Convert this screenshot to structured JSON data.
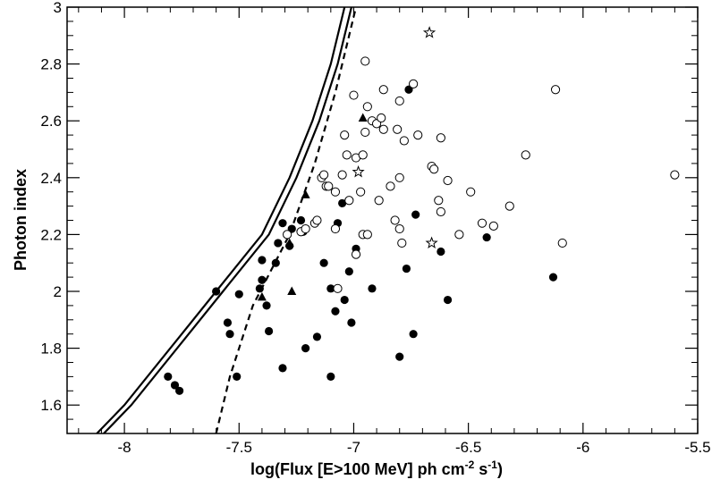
{
  "chart_data": {
    "type": "scatter",
    "title": "",
    "xlabel": "log(Flux [E>100 MeV] ph cm",
    "xlabel_sup1": "-2",
    "xlabel_mid": " s",
    "xlabel_sup2": "-1",
    "xlabel_end": ")",
    "ylabel": "Photon index",
    "xlim": [
      -8.25,
      -5.5
    ],
    "ylim": [
      1.5,
      3.0
    ],
    "x_ticks": [
      {
        "value": -8,
        "label": "-8"
      },
      {
        "value": -7.5,
        "label": "-7.5"
      },
      {
        "value": -7,
        "label": "-7"
      },
      {
        "value": -6.5,
        "label": "-6.5"
      },
      {
        "value": -6,
        "label": "-6"
      },
      {
        "value": -5.5,
        "label": "-5.5"
      }
    ],
    "y_ticks": [
      {
        "value": 1.6,
        "label": "1.6"
      },
      {
        "value": 1.8,
        "label": "1.8"
      },
      {
        "value": 2,
        "label": "2"
      },
      {
        "value": 2.2,
        "label": "2.2"
      },
      {
        "value": 2.4,
        "label": "2.4"
      },
      {
        "value": 2.6,
        "label": "2.6"
      },
      {
        "value": 2.8,
        "label": "2.8"
      },
      {
        "value": 3,
        "label": "3"
      }
    ],
    "grid": false,
    "series": [
      {
        "marker": "filled-circle",
        "points": [
          [
            -7.6,
            2.0
          ],
          [
            -7.55,
            1.89
          ],
          [
            -7.54,
            1.85
          ],
          [
            -7.5,
            1.99
          ],
          [
            -7.51,
            1.7
          ],
          [
            -7.81,
            1.7
          ],
          [
            -7.78,
            1.67
          ],
          [
            -7.76,
            1.65
          ],
          [
            -7.4,
            2.11
          ],
          [
            -7.4,
            2.04
          ],
          [
            -7.41,
            2.01
          ],
          [
            -7.38,
            1.95
          ],
          [
            -7.37,
            1.86
          ],
          [
            -7.34,
            2.1
          ],
          [
            -7.33,
            2.17
          ],
          [
            -7.31,
            2.24
          ],
          [
            -7.31,
            1.73
          ],
          [
            -7.28,
            2.16
          ],
          [
            -7.27,
            2.22
          ],
          [
            -7.23,
            2.25
          ],
          [
            -7.22,
            2.21
          ],
          [
            -7.21,
            1.8
          ],
          [
            -7.16,
            1.84
          ],
          [
            -7.13,
            2.1
          ],
          [
            -7.1,
            2.01
          ],
          [
            -7.1,
            1.7
          ],
          [
            -7.08,
            1.93
          ],
          [
            -7.07,
            2.24
          ],
          [
            -7.05,
            2.31
          ],
          [
            -7.04,
            1.97
          ],
          [
            -7.02,
            2.07
          ],
          [
            -7.01,
            1.89
          ],
          [
            -6.99,
            2.15
          ],
          [
            -6.92,
            2.01
          ],
          [
            -6.8,
            1.77
          ],
          [
            -6.77,
            2.08
          ],
          [
            -6.76,
            2.71
          ],
          [
            -6.73,
            2.27
          ],
          [
            -6.74,
            1.85
          ],
          [
            -6.62,
            2.14
          ],
          [
            -6.59,
            1.97
          ],
          [
            -6.42,
            2.19
          ],
          [
            -6.13,
            2.05
          ]
        ]
      },
      {
        "marker": "open-circle",
        "points": [
          [
            -7.29,
            2.2
          ],
          [
            -7.23,
            2.21
          ],
          [
            -7.21,
            2.22
          ],
          [
            -7.17,
            2.24
          ],
          [
            -7.16,
            2.25
          ],
          [
            -7.14,
            2.4
          ],
          [
            -7.13,
            2.41
          ],
          [
            -7.12,
            2.37
          ],
          [
            -7.11,
            2.37
          ],
          [
            -7.08,
            2.35
          ],
          [
            -7.08,
            2.22
          ],
          [
            -7.07,
            2.01
          ],
          [
            -7.05,
            2.41
          ],
          [
            -7.04,
            2.55
          ],
          [
            -7.03,
            2.48
          ],
          [
            -7.02,
            2.32
          ],
          [
            -7.0,
            2.69
          ],
          [
            -6.99,
            2.13
          ],
          [
            -6.99,
            2.47
          ],
          [
            -6.97,
            2.35
          ],
          [
            -6.96,
            2.2
          ],
          [
            -6.96,
            2.48
          ],
          [
            -6.95,
            2.56
          ],
          [
            -6.95,
            2.81
          ],
          [
            -6.94,
            2.2
          ],
          [
            -6.94,
            2.65
          ],
          [
            -6.92,
            2.6
          ],
          [
            -6.9,
            2.59
          ],
          [
            -6.89,
            2.32
          ],
          [
            -6.88,
            2.61
          ],
          [
            -6.87,
            2.71
          ],
          [
            -6.87,
            2.57
          ],
          [
            -6.84,
            2.37
          ],
          [
            -6.82,
            2.25
          ],
          [
            -6.81,
            2.57
          ],
          [
            -6.8,
            2.22
          ],
          [
            -6.8,
            2.4
          ],
          [
            -6.8,
            2.67
          ],
          [
            -6.79,
            2.17
          ],
          [
            -6.78,
            2.53
          ],
          [
            -6.74,
            2.73
          ],
          [
            -6.72,
            2.55
          ],
          [
            -6.66,
            2.44
          ],
          [
            -6.65,
            2.43
          ],
          [
            -6.63,
            2.32
          ],
          [
            -6.62,
            2.54
          ],
          [
            -6.62,
            2.28
          ],
          [
            -6.59,
            2.39
          ],
          [
            -6.54,
            2.2
          ],
          [
            -6.49,
            2.35
          ],
          [
            -6.44,
            2.24
          ],
          [
            -6.39,
            2.23
          ],
          [
            -6.32,
            2.3
          ],
          [
            -6.25,
            2.48
          ],
          [
            -6.12,
            2.71
          ],
          [
            -6.09,
            2.17
          ],
          [
            -5.6,
            2.41
          ]
        ]
      },
      {
        "marker": "filled-triangle",
        "points": [
          [
            -7.4,
            1.98
          ],
          [
            -7.28,
            2.17
          ],
          [
            -7.27,
            2.0
          ],
          [
            -7.21,
            2.34
          ],
          [
            -6.96,
            2.61
          ]
        ]
      },
      {
        "marker": "open-star",
        "points": [
          [
            -6.67,
            2.91
          ],
          [
            -6.98,
            2.42
          ],
          [
            -6.66,
            2.17
          ]
        ]
      }
    ],
    "curves": [
      {
        "style": "solid",
        "points": [
          [
            -8.12,
            1.5
          ],
          [
            -8.0,
            1.6
          ],
          [
            -7.8,
            1.8
          ],
          [
            -7.6,
            2.0
          ],
          [
            -7.4,
            2.2
          ],
          [
            -7.28,
            2.4
          ],
          [
            -7.18,
            2.6
          ],
          [
            -7.1,
            2.8
          ],
          [
            -7.04,
            3.0
          ]
        ]
      },
      {
        "style": "solid",
        "points": [
          [
            -8.09,
            1.5
          ],
          [
            -7.97,
            1.6
          ],
          [
            -7.77,
            1.8
          ],
          [
            -7.57,
            2.0
          ],
          [
            -7.37,
            2.2
          ],
          [
            -7.25,
            2.4
          ],
          [
            -7.15,
            2.6
          ],
          [
            -7.07,
            2.8
          ],
          [
            -7.01,
            3.0
          ]
        ]
      },
      {
        "style": "dashed",
        "points": [
          [
            -7.6,
            1.5
          ],
          [
            -7.54,
            1.7
          ],
          [
            -7.44,
            1.95
          ],
          [
            -7.28,
            2.2
          ],
          [
            -7.17,
            2.45
          ],
          [
            -7.08,
            2.7
          ],
          [
            -7.02,
            2.9
          ],
          [
            -6.99,
            3.0
          ]
        ]
      }
    ]
  }
}
